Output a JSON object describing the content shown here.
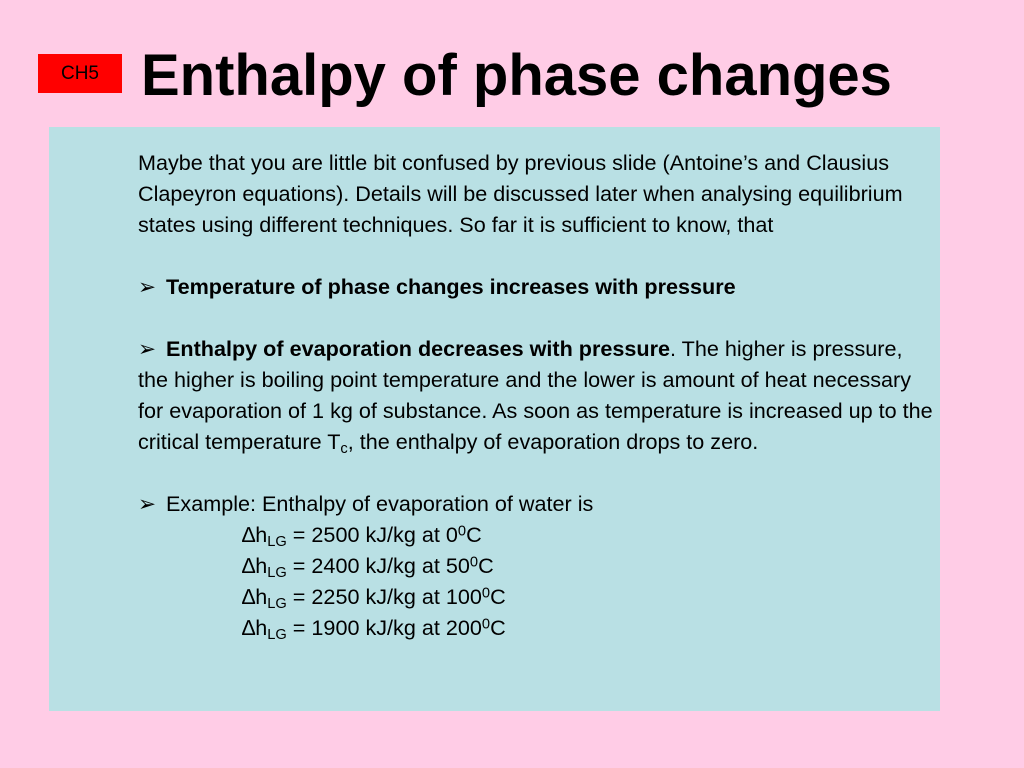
{
  "slide": {
    "badge": "CH5",
    "title": "Enthalpy of phase changes"
  },
  "content": {
    "intro": "Maybe that you are little bit confused by previous slide (Antoine’s and Clausius Clapeyron equations). Details will be discussed later when analysing equilibrium states using different techniques. So far it is sufficient to know, that",
    "bullet_marker": "➢",
    "bullet1_bold": "Temperature of phase changes increases with pressure",
    "bullet2_bold": "Enthalpy of evaporation decreases with pressure",
    "bullet2_text": ". The higher is pressure, the higher is boiling point temperature and the lower is amount of heat necessary for evaporation of 1 kg of substance. As soon as temperature is increased up to the critical temperature T",
    "bullet2_sub": "c",
    "bullet2_end": ", the enthalpy of evaporation drops to zero.",
    "bullet3_text": "Example: Enthalpy of evaporation of water is",
    "equations": [
      {
        "symbol": "∆h",
        "sub": "LG",
        "text": " = 2500 kJ/kg at 0",
        "sup": "0",
        "unit": "C"
      },
      {
        "symbol": "∆h",
        "sub": "LG",
        "text": " = 2400 kJ/kg at 50",
        "sup": "0",
        "unit": "C"
      },
      {
        "symbol": "∆h",
        "sub": "LG",
        "text": " = 2250 kJ/kg at 100",
        "sup": "0",
        "unit": "C"
      },
      {
        "symbol": "∆h",
        "sub": "LG",
        "text": " = 1900 kJ/kg at 200",
        "sup": "0",
        "unit": "C"
      }
    ]
  }
}
